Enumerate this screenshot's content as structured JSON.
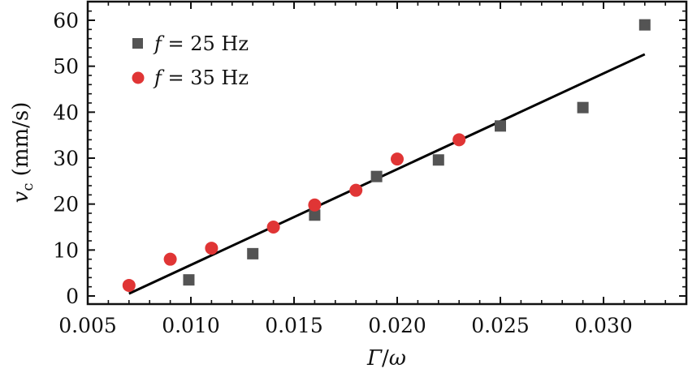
{
  "chart_data": {
    "type": "scatter",
    "title": "",
    "xlabel": "Γ/ω",
    "ylabel": "v_c (mm/s)",
    "xlim": [
      0.005,
      0.034
    ],
    "ylim": [
      -1.5,
      64
    ],
    "grid": false,
    "legend_position": "upper left",
    "xticks": [
      0.005,
      0.01,
      0.015,
      0.02,
      0.025,
      0.03
    ],
    "xtick_labels": [
      "0.005",
      "0.010",
      "0.015",
      "0.020",
      "0.025",
      "0.030"
    ],
    "yticks": [
      0,
      10,
      20,
      30,
      40,
      50,
      60
    ],
    "ytick_labels": [
      "0",
      "10",
      "20",
      "30",
      "40",
      "50",
      "60"
    ],
    "series": [
      {
        "name": "f = 25 Hz",
        "marker": "square",
        "color": "#545454",
        "x": [
          0.0099,
          0.013,
          0.016,
          0.019,
          0.022,
          0.025,
          0.029,
          0.032
        ],
        "y": [
          3.5,
          9.2,
          17.6,
          26.0,
          29.6,
          37.0,
          41.0,
          59.0
        ]
      },
      {
        "name": "f = 35 Hz",
        "marker": "circle",
        "color": "#e03535",
        "x": [
          0.007,
          0.009,
          0.011,
          0.014,
          0.016,
          0.018,
          0.02,
          0.023
        ],
        "y": [
          2.3,
          8.0,
          10.4,
          15.0,
          19.8,
          23.0,
          29.8,
          34.0
        ]
      },
      {
        "name": "linear fit",
        "marker": "none",
        "line": true,
        "color": "#000000",
        "x": [
          0.007,
          0.032
        ],
        "y": [
          0.5,
          52.6
        ]
      }
    ]
  },
  "legend": {
    "items": [
      {
        "prefix": "f",
        "eq": " = 25  Hz"
      },
      {
        "prefix": "f",
        "eq": " = 35  Hz"
      }
    ]
  },
  "axes": {
    "xlabel_main": "Γ",
    "xlabel_sep": "/",
    "xlabel_den": "ω",
    "ylabel_var": "v",
    "ylabel_sub": "c",
    "ylabel_unit": " (mm/s)"
  }
}
